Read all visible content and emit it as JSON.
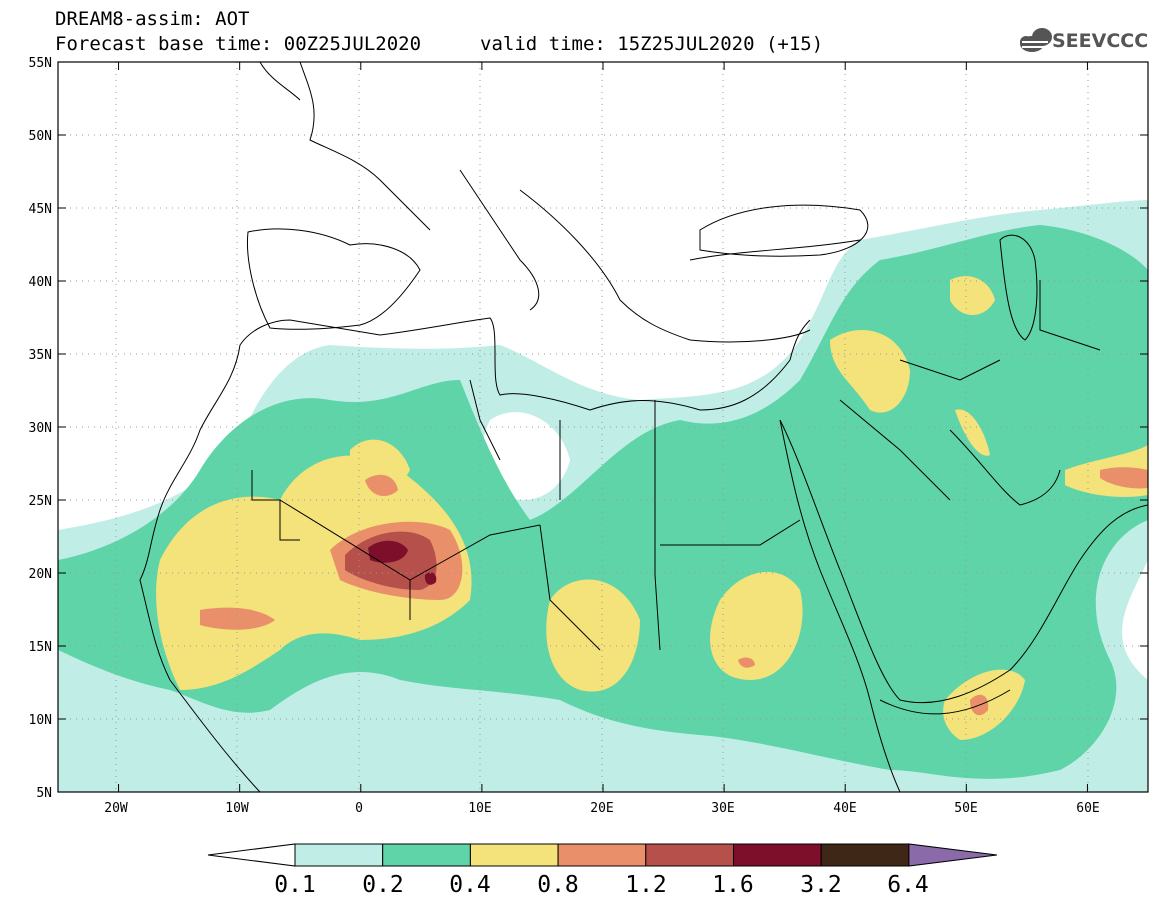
{
  "header": {
    "line1": "DREAM8-assim: AOT",
    "line2_left": "Forecast base time: 00Z25JUL2020",
    "line2_right": "valid time: 15Z25JUL2020 (+15)",
    "logo_text": "SEEVCCC",
    "logo_icon": "cloud-icon"
  },
  "map": {
    "lon_range": [
      -25,
      65
    ],
    "lat_range": [
      5,
      55
    ],
    "lon_ticks": [
      "20W",
      "10W",
      "0",
      "10E",
      "20E",
      "30E",
      "40E",
      "50E",
      "60E"
    ],
    "lat_ticks": [
      "55N",
      "50N",
      "45N",
      "40N",
      "35N",
      "30N",
      "25N",
      "20N",
      "15N",
      "10N",
      "5N"
    ],
    "gridlines": "dotted"
  },
  "colorbar": {
    "labels": [
      "0.1",
      "0.2",
      "0.4",
      "0.8",
      "1.2",
      "1.6",
      "3.2",
      "6.4"
    ],
    "colors": [
      "#ffffff",
      "#c0eee6",
      "#5fd4a8",
      "#f4e27a",
      "#e9906a",
      "#b6504a",
      "#7e0f2a",
      "#3e2717",
      "#8a6aa8"
    ]
  },
  "chart_data": {
    "type": "heatmap",
    "title": "DREAM8-assim: AOT",
    "xlabel": "",
    "ylabel": "",
    "xlim": [
      -25,
      65
    ],
    "ylim": [
      5,
      55
    ],
    "levels": [
      0.1,
      0.2,
      0.4,
      0.8,
      1.2,
      1.6,
      3.2,
      6.4
    ],
    "hotspots": [
      {
        "lon": 2,
        "lat": 21.5,
        "level": 1.6
      },
      {
        "lon": 6,
        "lat": 20,
        "level": 1.6
      },
      {
        "lon": -10,
        "lat": 17,
        "level": 0.8
      },
      {
        "lon": 30,
        "lat": 14,
        "level": 0.8
      },
      {
        "lon": 17,
        "lat": 14,
        "level": 0.8
      },
      {
        "lon": 52,
        "lat": 11,
        "level": 0.8
      }
    ]
  }
}
